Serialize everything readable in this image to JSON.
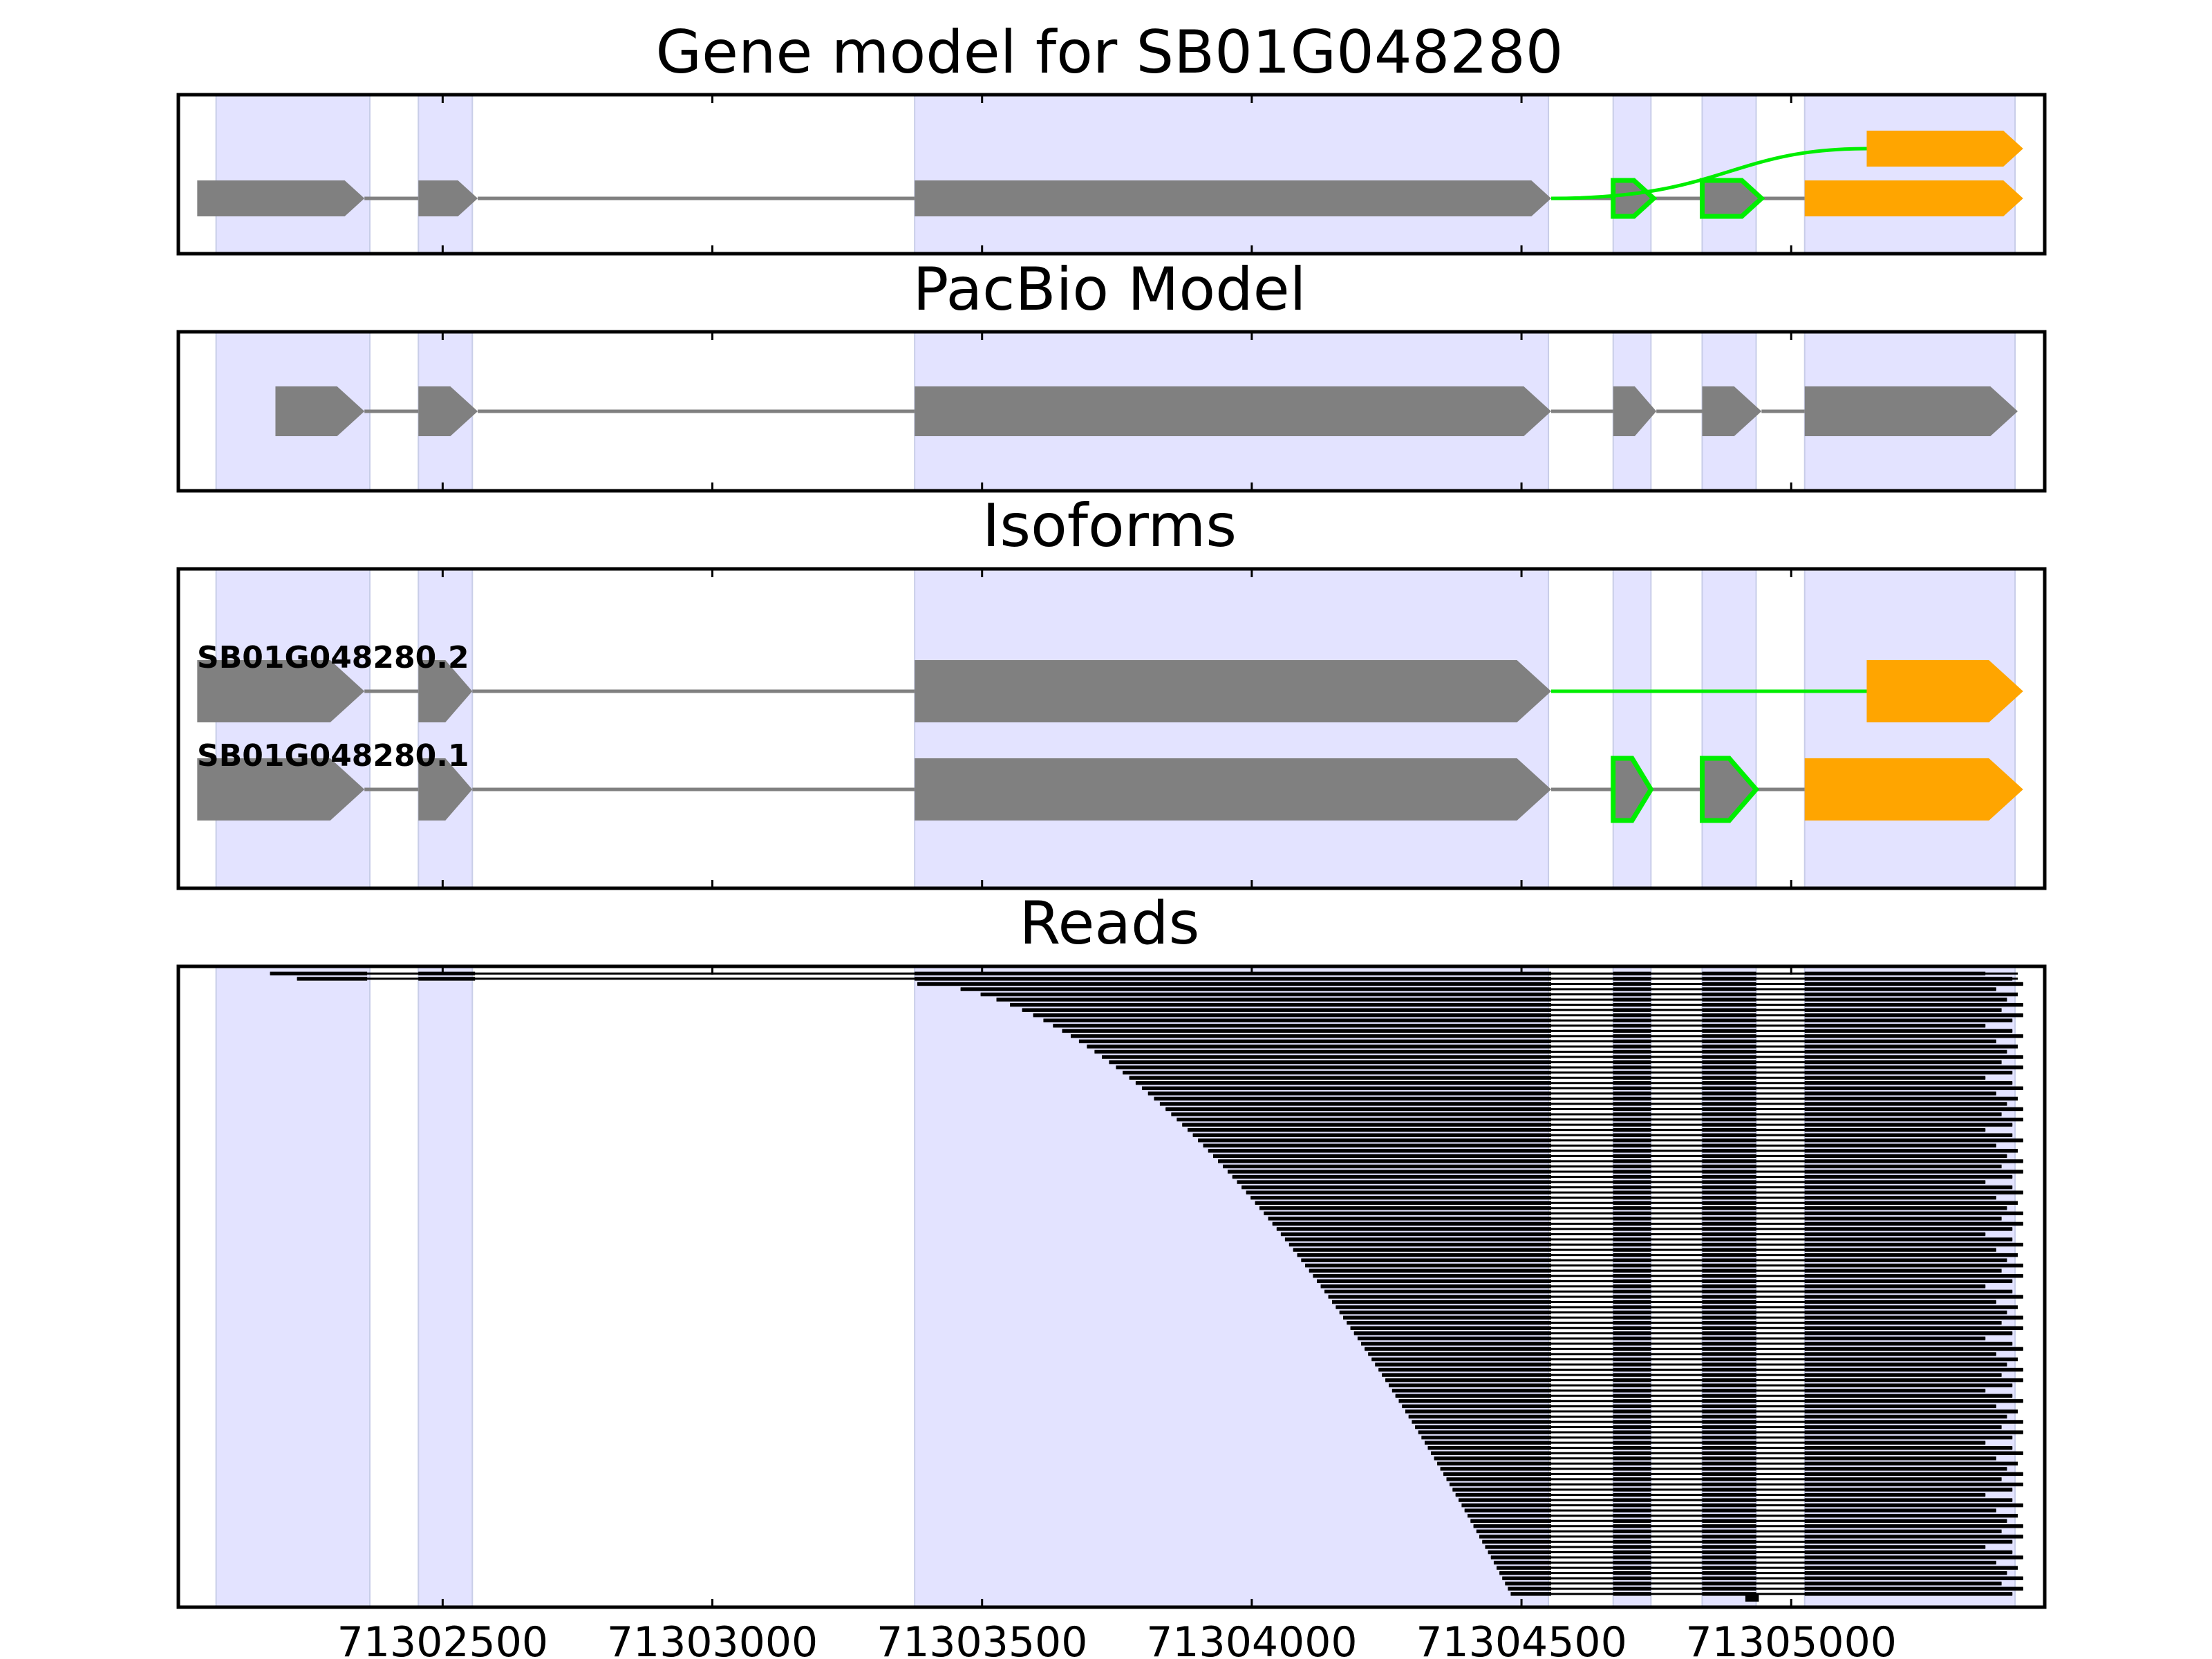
{
  "chart_data": [
    {
      "type": "gene-model",
      "title": "Gene model for SB01G048280",
      "exon_regions": [
        [
          71302080,
          71302365
        ],
        [
          71302455,
          71302555
        ],
        [
          71303375,
          71304550
        ],
        [
          71304670,
          71304740
        ],
        [
          71304835,
          71304935
        ],
        [
          71305025,
          71305415
        ]
      ],
      "transcripts": [
        {
          "exons": [
            [
              71302045,
              71302355
            ],
            [
              71302455,
              71302565
            ],
            [
              71303375,
              71304555
            ],
            [
              71304670,
              71304745
            ],
            [
              71304835,
              71304945
            ],
            [
              71305025,
              71305430
            ]
          ],
          "color": "#808080",
          "highlight_exons": [
            3,
            4
          ],
          "utr_exons": [
            5
          ],
          "row": 0
        },
        {
          "exons": [
            [
              71305140,
              71305430
            ]
          ],
          "color": "#ffa500",
          "connect_from": 71304555,
          "connect_color": "#00ee00",
          "row": 1
        }
      ],
      "xlim": [
        71302010,
        71305470
      ]
    },
    {
      "type": "gene-model",
      "title": "PacBio Model",
      "transcripts": [
        {
          "exons": [
            [
              71302190,
              71302355
            ],
            [
              71302455,
              71302565
            ],
            [
              71303375,
              71304555
            ],
            [
              71304670,
              71304750
            ],
            [
              71304835,
              71304945
            ],
            [
              71305025,
              71305420
            ]
          ],
          "color": "#808080",
          "row": 0
        }
      ]
    },
    {
      "type": "gene-model",
      "title": "Isoforms",
      "isoforms": [
        {
          "name": "SB01G048280.2",
          "exons": [
            [
              71302045,
              71302355
            ],
            [
              71302455,
              71302555
            ],
            [
              71303375,
              71304555
            ],
            [
              71305140,
              71305430
            ]
          ],
          "utr_exons": [
            3
          ],
          "green_intron": [
            71304555,
            71305140
          ]
        },
        {
          "name": "SB01G048280.1",
          "exons": [
            [
              71302045,
              71302355
            ],
            [
              71302455,
              71302555
            ],
            [
              71303375,
              71304555
            ],
            [
              71304670,
              71304740
            ],
            [
              71304835,
              71304935
            ],
            [
              71305025,
              71305430
            ]
          ],
          "utr_exons": [
            5
          ],
          "highlight_exons": [
            3,
            4
          ]
        }
      ]
    },
    {
      "type": "reads",
      "title": "Reads",
      "read_count": 120,
      "read_end_exon_tail": [
        71305360,
        71305410,
        71305430,
        71305380,
        71305420,
        71305400,
        71305430,
        71305390,
        71305430,
        71305410
      ],
      "x_tick_labels": [
        "71302500",
        "71303000",
        "71303500",
        "71304000",
        "71304500",
        "71305000"
      ],
      "x_ticks": [
        71302500,
        71303000,
        71303500,
        71304000,
        71304500,
        71305000
      ]
    }
  ],
  "colors": {
    "exon": "#808080",
    "utr": "#ffa500",
    "highlight": "#00ee00",
    "shade": "#e3e3ff",
    "read": "#000000"
  }
}
